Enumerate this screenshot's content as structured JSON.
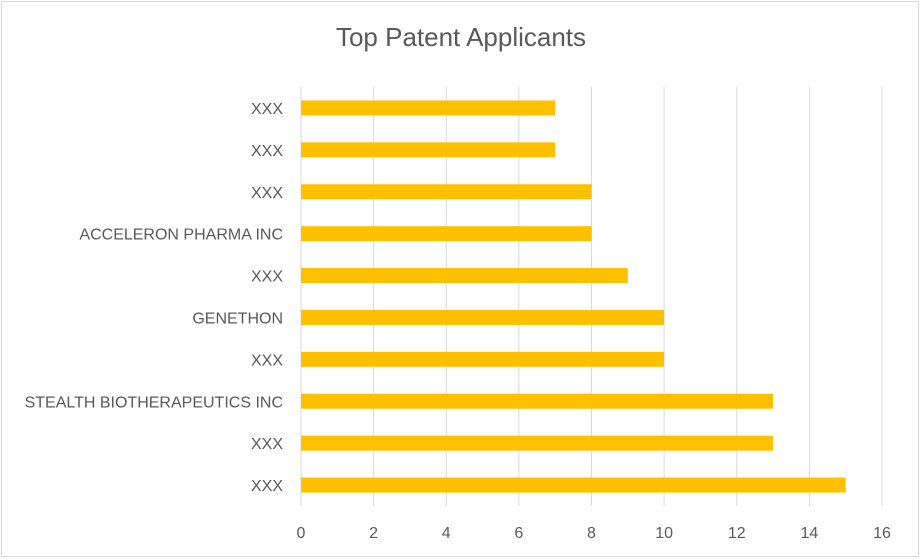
{
  "chart_data": {
    "type": "bar",
    "orientation": "horizontal",
    "title": "Top Patent Applicants",
    "categories": [
      "XXX",
      "XXX",
      "XXX",
      "ACCELERON PHARMA INC",
      "XXX",
      "GENETHON",
      "XXX",
      "STEALTH BIOTHERAPEUTICS INC",
      "XXX",
      "XXX"
    ],
    "values": [
      7,
      7,
      8,
      8,
      9,
      10,
      10,
      13,
      13,
      15
    ],
    "xlim": [
      0,
      16
    ],
    "xticks": [
      "0",
      "2",
      "4",
      "6",
      "8",
      "10",
      "12",
      "14",
      "16"
    ],
    "grid": "vertical",
    "legend": "none",
    "bar_color": "#FFC000"
  }
}
